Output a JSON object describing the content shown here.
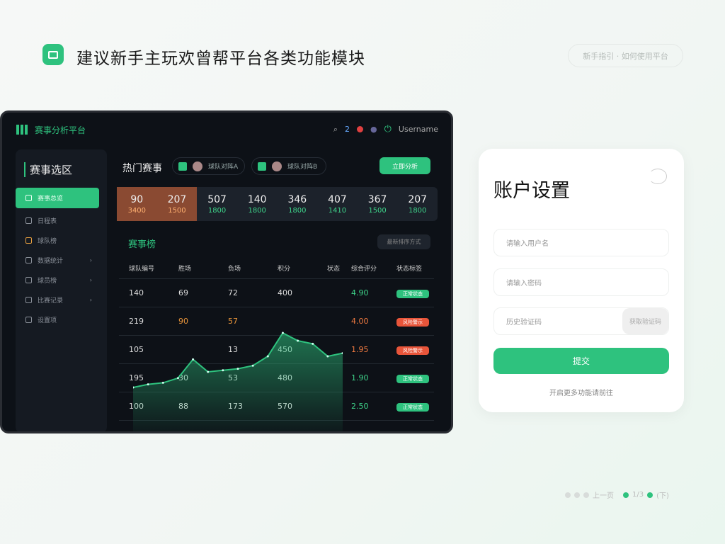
{
  "header": {
    "title": "建议新手主玩欢曾帮平台各类功能模块",
    "pill": "新手指引 · 如何使用平台"
  },
  "app": {
    "title": "赛事分析平台",
    "title_accent": "平台",
    "user": "Username",
    "badge": "2"
  },
  "sidebar": {
    "title": "赛事选区",
    "items": [
      {
        "label": "赛事总览",
        "active": true
      },
      {
        "label": "日程表"
      },
      {
        "label": "球队榜"
      },
      {
        "label": "数据统计"
      },
      {
        "label": "球员榜"
      },
      {
        "label": "比赛记录"
      },
      {
        "label": "设置项"
      }
    ]
  },
  "main": {
    "title": "热门赛事",
    "chips": [
      "球队对阵A",
      "球队对阵B"
    ],
    "action": "立即分析",
    "stats": [
      {
        "v": "90",
        "s": "3400"
      },
      {
        "v": "207",
        "s": "1500"
      },
      {
        "v": "507",
        "s": "1800"
      },
      {
        "v": "140",
        "s": "1800"
      },
      {
        "v": "346",
        "s": "1800"
      },
      {
        "v": "407",
        "s": "1410"
      },
      {
        "v": "367",
        "s": "1500"
      },
      {
        "v": "207",
        "s": "1800"
      }
    ],
    "section_title": "赛事榜",
    "dropdown": "最新排序方式",
    "columns": [
      "球队编号",
      "胜场",
      "负场",
      "积分",
      "状态",
      "综合评分",
      "状态标签"
    ],
    "rows": [
      [
        "140",
        "69",
        "72",
        "400",
        "",
        "4.90",
        "正常状态",
        "#2ec27e"
      ],
      [
        "219",
        "90",
        "57",
        "",
        "",
        "4.00",
        "风险警示",
        "#e8553a"
      ],
      [
        "105",
        "",
        "13",
        "450",
        "",
        "1.95",
        "风险警示",
        "#e8553a"
      ],
      [
        "195",
        "30",
        "53",
        "480",
        "",
        "1.90",
        "正常状态",
        "#2ec27e"
      ],
      [
        "100",
        "88",
        "173",
        "570",
        "",
        "2.50",
        "正常状态",
        "#2ec27e"
      ]
    ]
  },
  "chart_data": {
    "type": "area",
    "values": [
      10,
      12,
      13,
      16,
      28,
      20,
      21,
      22,
      24,
      30,
      45,
      40,
      38,
      30,
      32
    ],
    "color": "#2ec27e"
  },
  "account": {
    "title": "账户设置",
    "field1": "请输入用户名",
    "field2": "请输入密码",
    "field3": "历史验证码",
    "code_btn": "获取验证码",
    "submit": "提交",
    "link": "开启更多功能请前往"
  },
  "pager": {
    "label": "上一页",
    "current": "1/3",
    "next": "(下)"
  }
}
